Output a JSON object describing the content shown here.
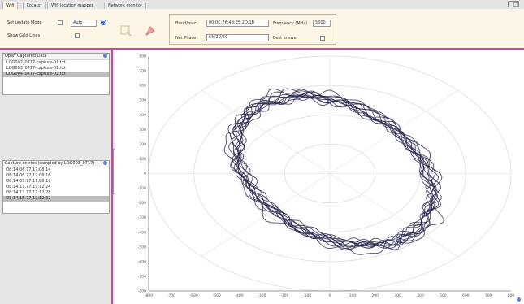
{
  "tabs": [
    {
      "label": "Wifi",
      "active": true
    },
    {
      "label": "Locator",
      "active": false
    },
    {
      "label": "Wifi location mapper",
      "active": false
    },
    {
      "label": "Network monitor",
      "active": false
    }
  ],
  "window_control_label": "_ □",
  "toolbar": {
    "auto_update_label": "Set update Mode",
    "mode_value": "Auto",
    "show_grid_label": "Show Grid Lines",
    "bssid_label": "Bssid/mac",
    "bssid_value": "00:0C:76:4B:E5:2D:1B",
    "frequency_label": "Frequency (MHz)",
    "frequency_value": "5500",
    "net_phase_label": "Net Phase",
    "net_phase_value": "Ch/2D/50",
    "best_answer_label": "Best answer"
  },
  "left_panel": {
    "files_header": "Open Captured Data",
    "files": [
      "LOG002_0717-capture-01.txt",
      "LOG003_0717-capture-01.txt",
      "LOG004_0717-capture-02.txt"
    ],
    "files_selected_index": 2,
    "entries_header": "Capture entries (sampled by LOG003_0717)",
    "entries": [
      "08:14:06.77 17:08:14",
      "08:14:08.77 17:08:16",
      "08:14:09.77 17:08:19",
      "08:14:11.77 17:12:24",
      "08:14:13.77 17:12:28",
      "08:14:15.77 17:12:32"
    ],
    "entries_selected_index": 5
  },
  "chart_data": {
    "type": "scatter",
    "title": "",
    "xlabel": "",
    "ylabel": "",
    "xlim": [
      -800,
      800
    ],
    "ylim": [
      -800,
      800
    ],
    "x_ticks": [
      -800,
      -700,
      -600,
      -500,
      -400,
      -300,
      -200,
      -100,
      0,
      100,
      200,
      300,
      400,
      500,
      600,
      700,
      800
    ],
    "y_ticks": [
      800,
      700,
      600,
      500,
      400,
      300,
      200,
      100,
      0,
      -100,
      -200,
      -300,
      -400,
      -500,
      -600,
      -700,
      -800
    ],
    "grid": "polar",
    "polar_rings": [
      200,
      400,
      600,
      800
    ],
    "legend": "none",
    "trace_color": "#2b2d52",
    "trace": {
      "description_values": {
        "center": [
          20,
          20
        ],
        "semi_axis_major": 560,
        "semi_axis_minor": 385,
        "rotation_deg": -58,
        "loops": 12
      }
    }
  }
}
